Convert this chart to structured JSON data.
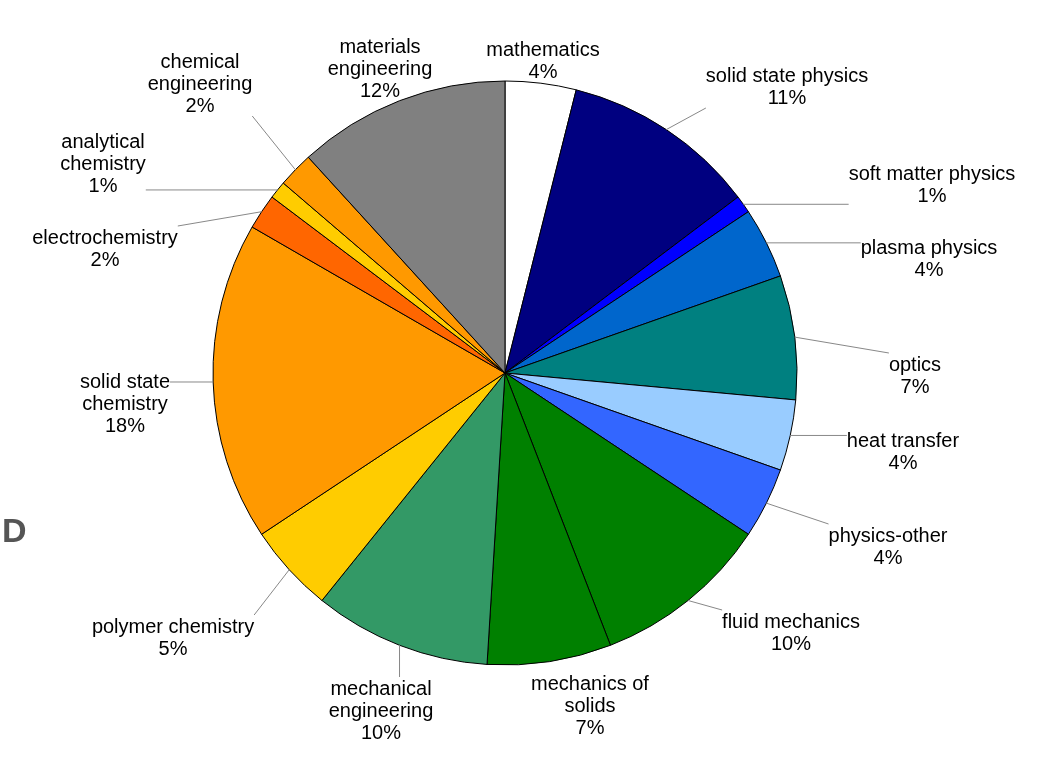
{
  "chart_data": {
    "type": "pie",
    "categories": [
      "mathematics",
      "solid state physics",
      "soft matter physics",
      "plasma physics",
      "optics",
      "heat transfer",
      "physics-other",
      "fluid mechanics",
      "mechanics of solids",
      "mechanical engineering",
      "polymer chemistry",
      "solid state chemistry",
      "electrochemistry",
      "analytical chemistry",
      "chemical engineering",
      "materials engineering"
    ],
    "values": [
      4,
      11,
      1,
      4,
      7,
      4,
      4,
      10,
      7,
      10,
      5,
      18,
      2,
      1,
      2,
      12
    ],
    "colors": [
      "#ffffff",
      "#000080",
      "#0000ff",
      "#0066cc",
      "#008080",
      "#99ccff",
      "#3366ff",
      "#008000",
      "#008000",
      "#339966",
      "#ffcc00",
      "#ff9900",
      "#ff6600",
      "#ffcc00",
      "#ff9900",
      "#808080"
    ],
    "value_labels": [
      "4%",
      "11%",
      "1%",
      "4%",
      "7%",
      "4%",
      "4%",
      "10%",
      "7%",
      "10%",
      "5%",
      "18%",
      "2%",
      "1%",
      "2%",
      "12%"
    ],
    "annotations": [
      "D"
    ]
  }
}
